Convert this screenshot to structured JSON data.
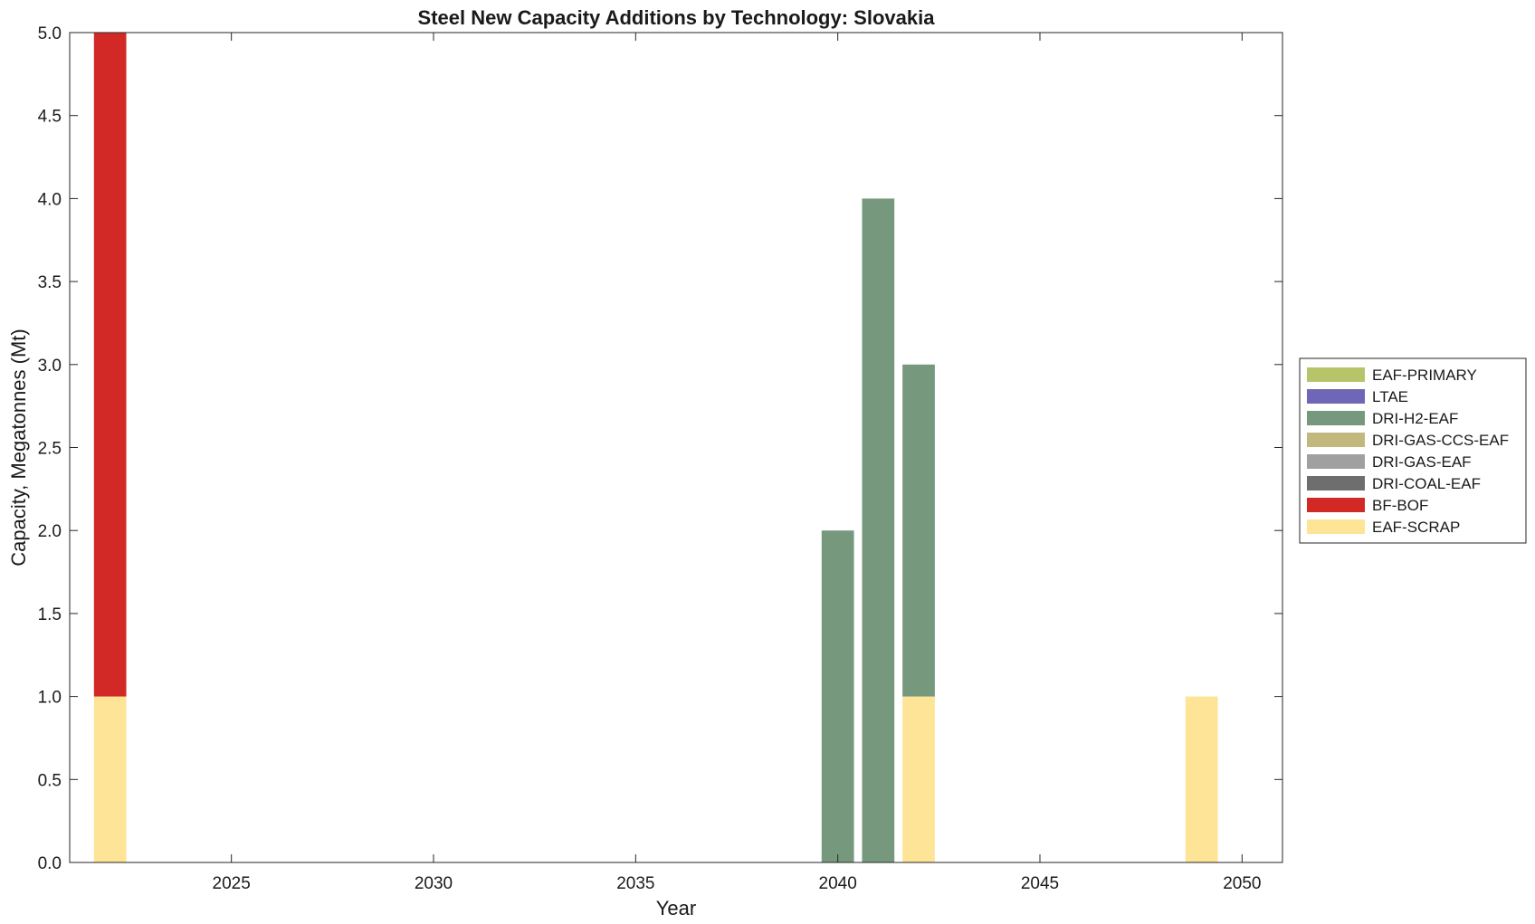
{
  "chart_data": {
    "type": "bar",
    "stacked": true,
    "title": "Steel New Capacity Additions by Technology: Slovakia",
    "xlabel": "Year",
    "ylabel": "Capacity, Megatonnes (Mt)",
    "xlim": [
      2021,
      2051
    ],
    "ylim": [
      0,
      5
    ],
    "xticks": [
      2025,
      2030,
      2035,
      2040,
      2045,
      2050
    ],
    "yticks": [
      0,
      0.5,
      1,
      1.5,
      2,
      2.5,
      3,
      3.5,
      4,
      4.5,
      5
    ],
    "ytick_labels": [
      "0.0",
      "0.5",
      "1.0",
      "1.5",
      "2.0",
      "2.5",
      "3.0",
      "3.5",
      "4.0",
      "4.5",
      "5.0"
    ],
    "grid": false,
    "legend_position": "right, outside",
    "bar_width_years": 0.8,
    "x": [
      2022,
      2040,
      2041,
      2042,
      2049
    ],
    "series": [
      {
        "name": "EAF-SCRAP",
        "color": "#FEE496",
        "values": [
          1,
          0,
          0,
          1,
          1
        ]
      },
      {
        "name": "BF-BOF",
        "color": "#D22926",
        "values": [
          4,
          0,
          0,
          0,
          0
        ]
      },
      {
        "name": "DRI-COAL-EAF",
        "color": "#6E6E6E",
        "values": [
          0,
          0,
          0,
          0,
          0
        ]
      },
      {
        "name": "DRI-GAS-EAF",
        "color": "#A0A0A0",
        "values": [
          0,
          0,
          0,
          0,
          0
        ]
      },
      {
        "name": "DRI-GAS-CCS-EAF",
        "color": "#C2B87E",
        "values": [
          0,
          0,
          0,
          0,
          0
        ]
      },
      {
        "name": "DRI-H2-EAF",
        "color": "#76997E",
        "values": [
          0,
          2,
          4,
          2,
          0
        ]
      },
      {
        "name": "LTAE",
        "color": "#6F66B7",
        "values": [
          0,
          0,
          0,
          0,
          0
        ]
      },
      {
        "name": "EAF-PRIMARY",
        "color": "#B8C46A",
        "values": [
          0,
          0,
          0,
          0,
          0
        ]
      }
    ],
    "legend_order": [
      "EAF-PRIMARY",
      "LTAE",
      "DRI-H2-EAF",
      "DRI-GAS-CCS-EAF",
      "DRI-GAS-EAF",
      "DRI-COAL-EAF",
      "BF-BOF",
      "EAF-SCRAP"
    ]
  }
}
